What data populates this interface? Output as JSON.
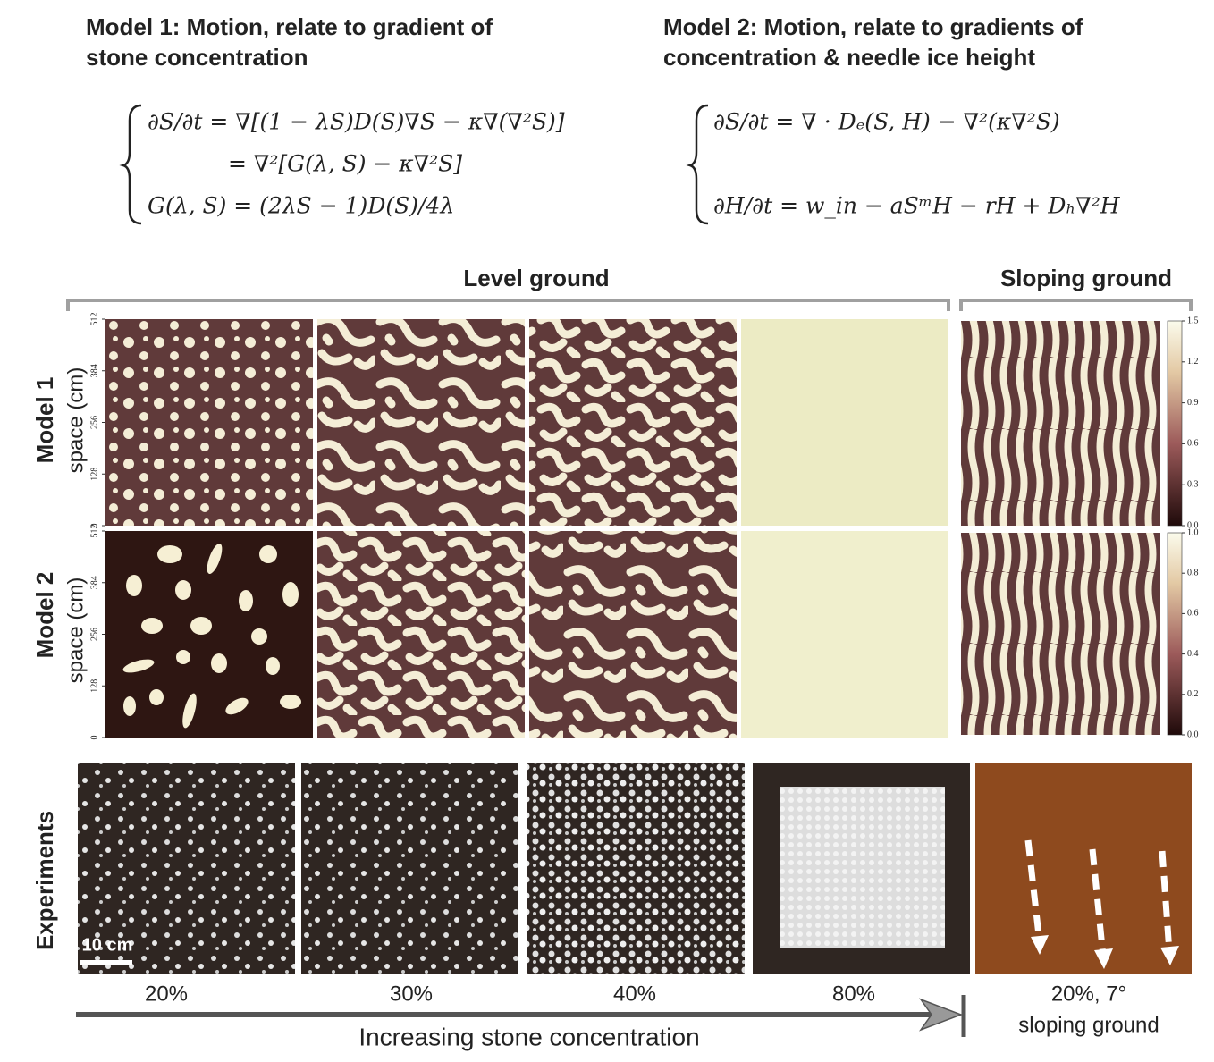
{
  "models": [
    {
      "title_lines": [
        "Model 1: Motion, relate to gradient of",
        "stone concentration"
      ],
      "equations": [
        "∂S/∂t = ∇[(1 − λS)D(S)∇S − κ∇(∇²S)]",
        "= ∇²[G(λ, S) − κ∇²S]",
        "G(λ, S) = (2λS − 1)D(S)/4λ"
      ]
    },
    {
      "title_lines": [
        "Model 2: Motion, relate to gradients of",
        "concentration & needle ice height"
      ],
      "equations": [
        "∂S/∂t = ∇ · Dₑ(S, H) − ∇²(κ∇²S)",
        "∂H/∂t = w_in − aSᵐH − rH + Dₕ∇²H"
      ]
    }
  ],
  "headers": {
    "level": "Level ground",
    "sloping": "Sloping ground"
  },
  "rows": [
    {
      "label": "Model 1",
      "axis_label": "space (cm)",
      "yticks": [
        "0",
        "128",
        "256",
        "384",
        "512"
      ],
      "colorbar_ticks": [
        "0.0",
        "0.3",
        "0.6",
        "0.9",
        "1.2",
        "1.5"
      ]
    },
    {
      "label": "Model 2",
      "axis_label": "space (cm)",
      "yticks": [
        "0",
        "128",
        "256",
        "384",
        "512"
      ],
      "colorbar_ticks": [
        "0.0",
        "0.2",
        "0.4",
        "0.6",
        "0.8",
        "1.0"
      ]
    },
    {
      "label": "Experiments"
    }
  ],
  "scale_bar": "10 cm",
  "concentrations": [
    "20%",
    "30%",
    "40%",
    "80%"
  ],
  "slope_label_lines": [
    "20%, 7°",
    "sloping ground"
  ],
  "arrow_label": "Increasing stone concentration"
}
